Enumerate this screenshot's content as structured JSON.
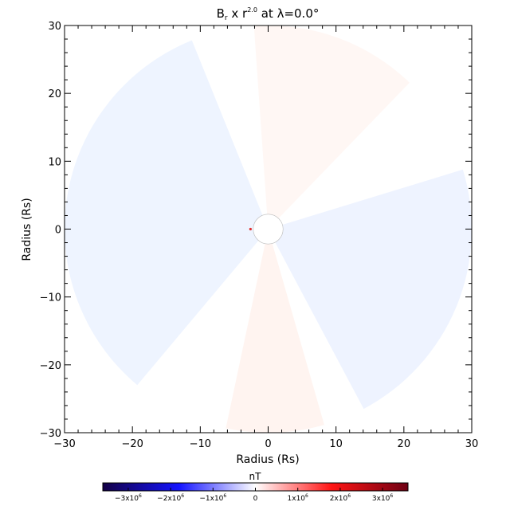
{
  "chart_data": {
    "type": "heatmap",
    "title": "B",
    "title_sub": "r",
    "title_mid": " x r",
    "title_sup": "2.0",
    "title_end": " at λ=0.0°",
    "xlabel": "Radius (Rs)",
    "ylabel": "Radius (Rs)",
    "xlim": [
      -30,
      30
    ],
    "ylim": [
      -30,
      30
    ],
    "x_ticks": [
      -30,
      -20,
      -10,
      0,
      10,
      20,
      30
    ],
    "y_ticks": [
      -30,
      -20,
      -10,
      0,
      10,
      20,
      30
    ],
    "x_tick_labels": [
      "−30",
      "−20",
      "−10",
      "0",
      "10",
      "20",
      "30"
    ],
    "y_tick_labels": [
      "−30",
      "−20",
      "−10",
      "0",
      "10",
      "20",
      "30"
    ],
    "grid": false,
    "colorbar": {
      "label": "nT",
      "range": [
        -3600000,
        3600000
      ],
      "ticks": [
        {
          "value": -3000000,
          "mant": "−3x10",
          "exp": "6"
        },
        {
          "value": -2000000,
          "mant": "−2x10",
          "exp": "6"
        },
        {
          "value": -1000000,
          "mant": "−1x10",
          "exp": "6"
        },
        {
          "value": 0,
          "mant": "0",
          "exp": ""
        },
        {
          "value": 1000000,
          "mant": "1x10",
          "exp": "6"
        },
        {
          "value": 2000000,
          "mant": "2x10",
          "exp": "6"
        },
        {
          "value": 3000000,
          "mant": "3x10",
          "exp": "6"
        }
      ],
      "colors": [
        "#140046",
        "#1414ff",
        "#ffffff",
        "#ff1414",
        "#6e0014"
      ]
    },
    "inner_radius": 1.0,
    "outer_radius": 30,
    "sectors": [
      {
        "name": "left-negative-sector",
        "start_deg": 112,
        "end_deg": 230,
        "color": "#eef4ff"
      },
      {
        "name": "top-positive-sector",
        "start_deg": 46,
        "end_deg": 94,
        "color": "#fff7f4"
      },
      {
        "name": "right-negative-sector",
        "start_deg": -62,
        "end_deg": 17,
        "color": "#eef3ff"
      },
      {
        "name": "bottom-positive-sector",
        "start_deg": 258,
        "end_deg": 286,
        "color": "#fff4f0"
      }
    ]
  }
}
